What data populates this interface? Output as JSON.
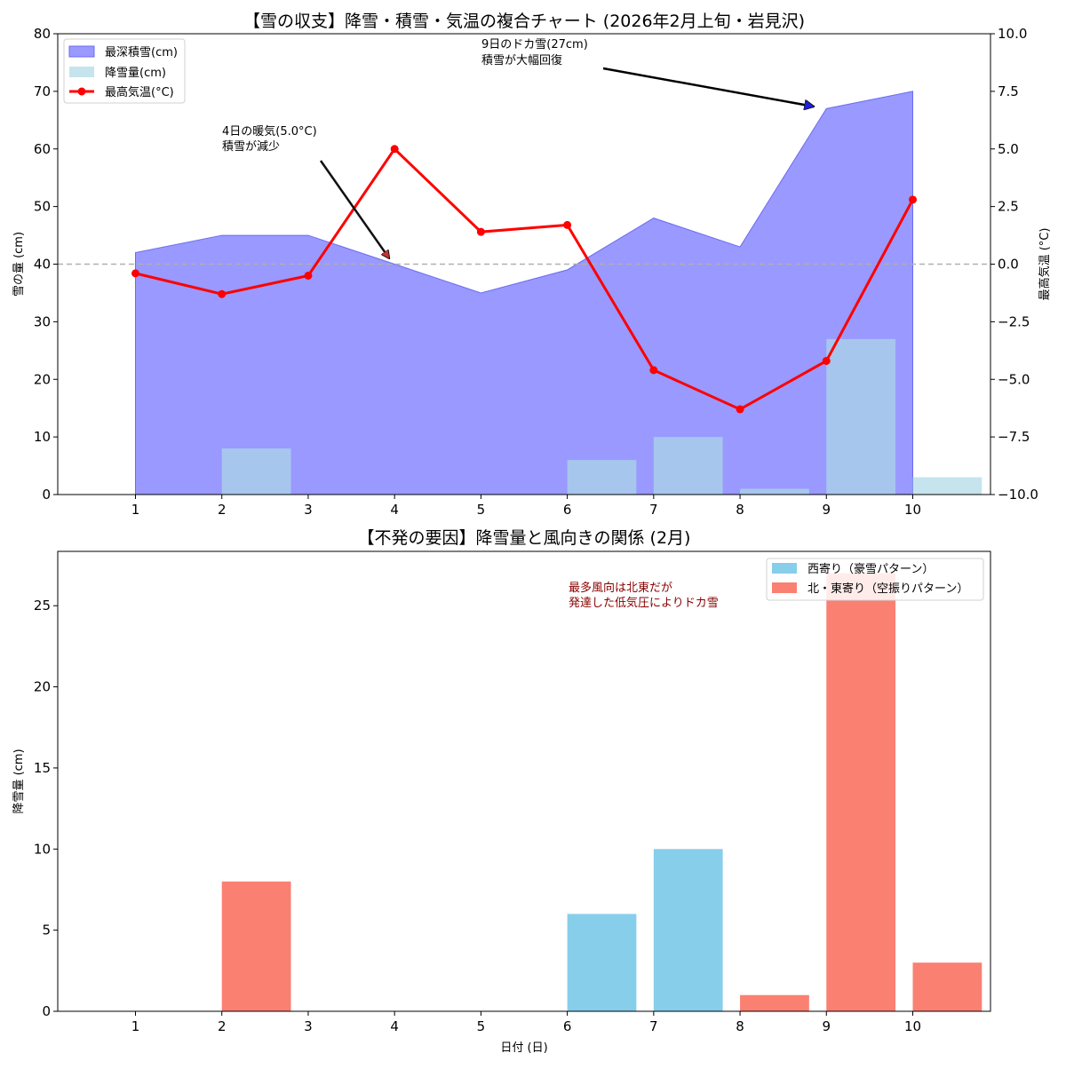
{
  "chart_data": [
    {
      "type": "combo",
      "title": "【雪の収支】降雪・積雪・気温の複合チャート (2026年2月上旬・岩見沢)",
      "xlabel": "",
      "ylabel": "雪の量 (cm)",
      "y2label": "最高気温 (°C)",
      "categories": [
        "1",
        "2",
        "3",
        "4",
        "5",
        "6",
        "7",
        "8",
        "9",
        "10"
      ],
      "ylim": [
        0,
        80
      ],
      "yticks": [
        0,
        10,
        20,
        30,
        40,
        50,
        60,
        70,
        80
      ],
      "y2lim": [
        -10,
        10
      ],
      "y2ticks": [
        "−10.0",
        "−7.5",
        "−5.0",
        "−2.5",
        "0.0",
        "2.5",
        "5.0",
        "7.5",
        "10.0"
      ],
      "legend_position": "upper-left",
      "series": [
        {
          "name": "最深積雪(cm)",
          "type": "area",
          "axis": "left",
          "color": "#9999ff",
          "values": [
            42,
            45,
            45,
            40,
            35,
            39,
            48,
            43,
            67,
            70
          ]
        },
        {
          "name": "降雪量(cm)",
          "type": "bar",
          "axis": "left",
          "color": "#add8e6",
          "values": [
            0,
            8,
            0,
            0,
            0,
            6,
            10,
            1,
            27,
            3
          ]
        },
        {
          "name": "最高気温(°C)",
          "type": "line",
          "axis": "right",
          "color": "#ff0000",
          "values": [
            -0.4,
            -1.3,
            -0.5,
            5.0,
            1.4,
            1.7,
            -4.6,
            -6.3,
            -4.2,
            2.8
          ]
        }
      ],
      "reference_line": {
        "axis": "right",
        "value": 0.0
      },
      "annotations": [
        {
          "lines": [
            "4日の暖気(5.0°C)",
            "積雪が減少"
          ],
          "points_to_category": "4",
          "points_to_value": 41,
          "arrow_color": "#111111"
        },
        {
          "lines": [
            "9日のドカ雪(27cm)",
            "積雪が大幅回復"
          ],
          "points_to_category": "9",
          "points_to_value": 67,
          "arrow_color": "#0000ff"
        }
      ]
    },
    {
      "type": "bar",
      "title": "【不発の要因】降雪量と風向きの関係 (2月)",
      "xlabel": "日付 (日)",
      "ylabel": "降雪量 (cm)",
      "categories": [
        "1",
        "2",
        "3",
        "4",
        "5",
        "6",
        "7",
        "8",
        "9",
        "10"
      ],
      "ylim": [
        0,
        28.35
      ],
      "yticks": [
        0,
        5,
        10,
        15,
        20,
        25
      ],
      "legend_position": "upper-right",
      "groups": [
        {
          "name": "西寄り（豪雪パターン）",
          "color": "#87ceeb"
        },
        {
          "name": "北・東寄り（空振りパターン）",
          "color": "#fa8072"
        }
      ],
      "values": [
        0,
        8,
        0,
        0,
        0,
        6,
        10,
        1,
        27,
        3
      ],
      "wind_group": [
        1,
        1,
        1,
        1,
        1,
        0,
        0,
        1,
        1,
        1
      ],
      "note": {
        "lines": [
          "最多風向は北東だが",
          "発達した低気圧によりドカ雪"
        ],
        "color": "#8b0000",
        "anchor_category": "6",
        "anchor_value": 25.5
      }
    }
  ]
}
